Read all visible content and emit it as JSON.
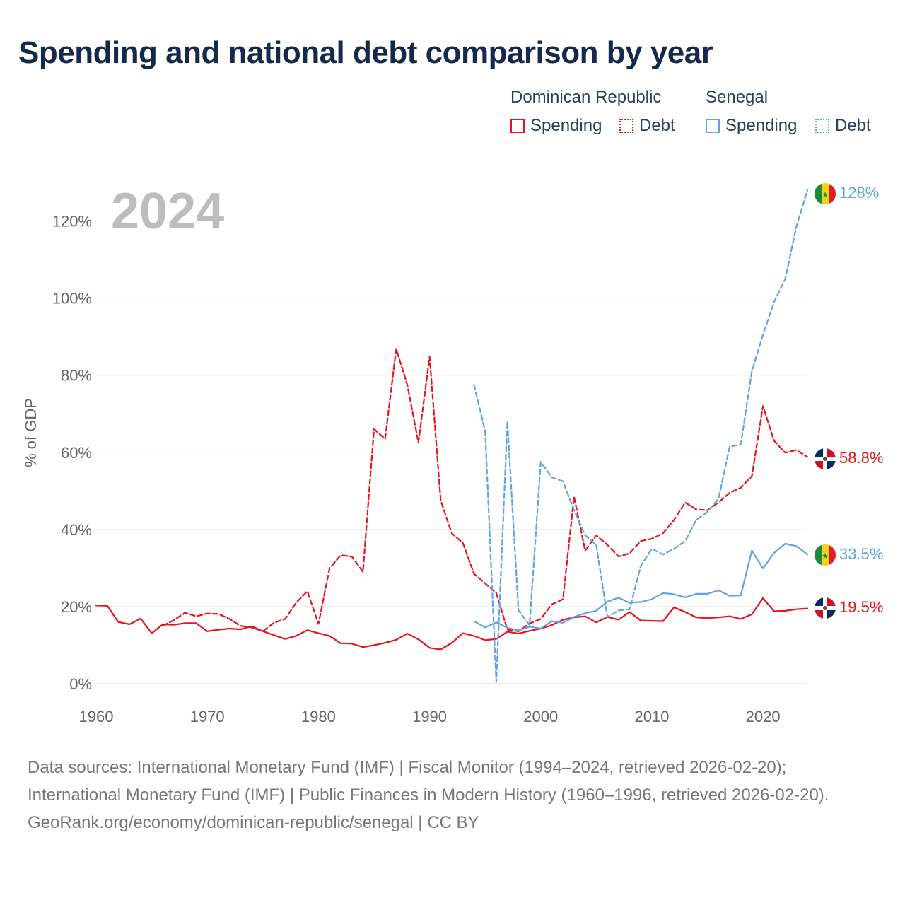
{
  "title": "Spending and national debt comparison by year",
  "legend": {
    "groups": [
      {
        "name": "Dominican Republic",
        "items": [
          {
            "label": "Spending",
            "style": "solid",
            "color": "#e8131b"
          },
          {
            "label": "Debt",
            "style": "dotted",
            "color": "#e8131b"
          }
        ]
      },
      {
        "name": "Senegal",
        "items": [
          {
            "label": "Spending",
            "style": "solid",
            "color": "#5ea4e6"
          },
          {
            "label": "Debt",
            "style": "dotted",
            "color": "#5ea4e6"
          }
        ]
      }
    ]
  },
  "year_label": "2024",
  "footer": {
    "sources": "Data sources: International Monetary Fund (IMF) | Fiscal Monitor (1994–2024, retrieved 2026-02-20); International Monetary Fund (IMF) | Public Finances in Modern History (1960–1996, retrieved 2026-02-20).",
    "attribution": "GeoRank.org/economy/dominican-republic/senegal | CC BY"
  },
  "chart_data": {
    "type": "line",
    "ylabel": "% of GDP",
    "xlabel": "",
    "xlim": [
      1960,
      2024
    ],
    "ylim": [
      0,
      130
    ],
    "x_ticks": [
      1960,
      1970,
      1980,
      1990,
      2000,
      2010,
      2020
    ],
    "y_ticks": [
      0,
      20,
      40,
      60,
      80,
      100,
      120
    ],
    "y_tick_suffix": "%",
    "grid": true,
    "series": [
      {
        "name": "Dominican Republic Spending",
        "country": "dominican-republic",
        "kind": "spending",
        "color": "#e8131b",
        "dashed": false,
        "end_label": "19.5%",
        "x": [
          1960,
          1961,
          1962,
          1963,
          1964,
          1965,
          1966,
          1967,
          1968,
          1969,
          1970,
          1971,
          1972,
          1973,
          1974,
          1975,
          1976,
          1977,
          1978,
          1979,
          1980,
          1981,
          1982,
          1983,
          1984,
          1985,
          1986,
          1987,
          1988,
          1989,
          1990,
          1991,
          1992,
          1993,
          1994,
          1995,
          1996,
          1997,
          1998,
          1999,
          2000,
          2001,
          2002,
          2003,
          2004,
          2005,
          2006,
          2007,
          2008,
          2009,
          2010,
          2011,
          2012,
          2013,
          2014,
          2015,
          2016,
          2017,
          2018,
          2019,
          2020,
          2021,
          2022,
          2023,
          2024
        ],
        "values": [
          20.3,
          20.2,
          16.0,
          15.4,
          16.9,
          13.1,
          15.4,
          15.3,
          15.7,
          15.7,
          13.6,
          14.0,
          14.3,
          14.1,
          14.9,
          13.6,
          12.6,
          11.6,
          12.4,
          13.9,
          13.1,
          12.4,
          10.5,
          10.4,
          9.5,
          10.0,
          10.6,
          11.4,
          13.0,
          11.5,
          9.3,
          8.9,
          10.6,
          13.1,
          12.4,
          11.3,
          11.6,
          13.5,
          13.0,
          13.7,
          14.3,
          15.2,
          16.6,
          17.2,
          17.5,
          15.9,
          17.3,
          16.6,
          18.6,
          16.4,
          16.3,
          16.2,
          19.8,
          18.6,
          17.2,
          17.0,
          17.2,
          17.5,
          16.8,
          18.0,
          22.2,
          18.8,
          18.9,
          19.3,
          19.5
        ]
      },
      {
        "name": "Dominican Republic Debt",
        "country": "dominican-republic",
        "kind": "debt",
        "color": "#e8131b",
        "dashed": true,
        "end_label": "58.8%",
        "x": [
          1966,
          1967,
          1968,
          1969,
          1970,
          1971,
          1972,
          1973,
          1974,
          1975,
          1976,
          1977,
          1978,
          1979,
          1980,
          1981,
          1982,
          1983,
          1984,
          1985,
          1986,
          1987,
          1988,
          1989,
          1990,
          1991,
          1992,
          1993,
          1994,
          1995,
          1996,
          1997,
          1998,
          1999,
          2000,
          2001,
          2002,
          2003,
          2004,
          2005,
          2006,
          2007,
          2008,
          2009,
          2010,
          2011,
          2012,
          2013,
          2014,
          2015,
          2016,
          2017,
          2018,
          2019,
          2020,
          2021,
          2022,
          2023,
          2024
        ],
        "values": [
          15.0,
          16.5,
          18.4,
          17.5,
          18.2,
          18.1,
          16.8,
          15.0,
          14.6,
          13.6,
          15.8,
          16.8,
          21.0,
          24.0,
          15.5,
          29.9,
          33.3,
          33.0,
          29.0,
          66.0,
          63.5,
          86.8,
          77.5,
          62.5,
          84.8,
          47.5,
          39.0,
          36.5,
          28.5,
          26.0,
          23.5,
          14.0,
          13.6,
          15.6,
          16.8,
          20.6,
          21.9,
          48.5,
          34.5,
          38.5,
          36.0,
          33.0,
          33.8,
          37.0,
          37.6,
          39.0,
          42.5,
          47.0,
          45.2,
          45.0,
          47.0,
          49.5,
          50.8,
          53.8,
          72.0,
          63.0,
          59.9,
          60.6,
          58.8
        ]
      },
      {
        "name": "Senegal Spending",
        "country": "senegal",
        "kind": "spending",
        "color": "#5ea4e6",
        "dashed": false,
        "end_label": "33.5%",
        "x": [
          1994,
          1995,
          1996,
          1997,
          1998,
          1999,
          2000,
          2001,
          2002,
          2003,
          2004,
          2005,
          2006,
          2007,
          2008,
          2009,
          2010,
          2011,
          2012,
          2013,
          2014,
          2015,
          2016,
          2017,
          2018,
          2019,
          2020,
          2021,
          2022,
          2023,
          2024
        ],
        "values": [
          16.2,
          14.6,
          15.9,
          14.5,
          13.8,
          14.8,
          14.3,
          16.2,
          15.8,
          17.3,
          18.3,
          18.9,
          21.3,
          22.3,
          21.0,
          21.2,
          21.9,
          23.5,
          23.2,
          22.4,
          23.3,
          23.3,
          24.2,
          22.8,
          22.9,
          34.5,
          29.9,
          33.9,
          36.3,
          35.7,
          33.5
        ]
      },
      {
        "name": "Senegal Debt",
        "country": "senegal",
        "kind": "debt",
        "color": "#5ea4e6",
        "dashed": true,
        "end_label": "128%",
        "x": [
          1994,
          1995,
          1996,
          1997,
          1998,
          1999,
          2000,
          2001,
          2002,
          2003,
          2004,
          2005,
          2006,
          2007,
          2008,
          2009,
          2010,
          2011,
          2012,
          2013,
          2014,
          2015,
          2016,
          2017,
          2018,
          2019,
          2020,
          2021,
          2022,
          2023,
          2024
        ],
        "values": [
          77.5,
          65.5,
          0.5,
          68.0,
          19.0,
          15.2,
          57.5,
          53.5,
          52.5,
          45.0,
          38.5,
          36.0,
          17.3,
          19.0,
          19.3,
          30.5,
          35.0,
          33.5,
          35.0,
          37.0,
          42.5,
          44.5,
          48.0,
          61.5,
          62.0,
          81.0,
          90.5,
          99.0,
          105.0,
          118.5,
          128.0
        ]
      }
    ]
  }
}
